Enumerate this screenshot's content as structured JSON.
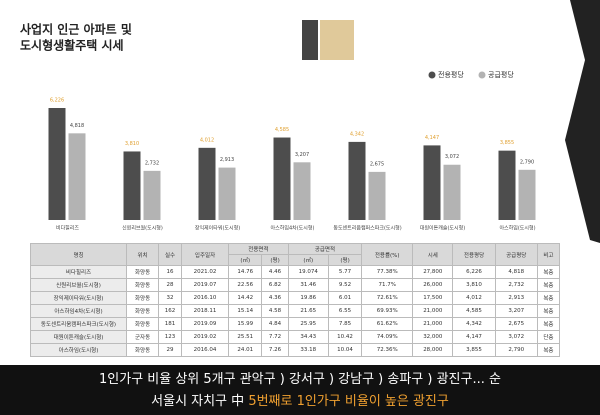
{
  "header": {
    "title_lines": [
      "사업지 인근 아파트 및",
      "도시형생활주택 시세"
    ]
  },
  "chart_data": {
    "type": "bar",
    "legend": "top-right",
    "categories": [
      "비다힐리즈",
      "신원리브월(도시형)",
      "장익제이타워(도시형)",
      "아스하임4차(도시형)",
      "동도센트리움캠퍼스파크(도시형)",
      "대원이튼캐슬(도시형)",
      "아스하임(도시형)"
    ],
    "series": [
      {
        "name": "전용평당",
        "color": "#4d4d4d",
        "label_color": "#e0a030",
        "values": [
          6226,
          3810,
          4012,
          4585,
          4342,
          4147,
          3855
        ],
        "value_labels": [
          "6,226",
          "3,810",
          "4,012",
          "4,585",
          "4,342",
          "4,147",
          "3,855"
        ]
      },
      {
        "name": "공급평당",
        "color": "#b3b3b3",
        "label_color": "#444444",
        "values": [
          4818,
          2732,
          2913,
          3207,
          2675,
          3072,
          2790
        ],
        "value_labels": [
          "4,818",
          "2,732",
          "2,913",
          "3,207",
          "2,675",
          "3,072",
          "2,790"
        ]
      }
    ]
  },
  "table": {
    "header": [
      "명칭",
      "위치",
      "실수",
      "입주일자",
      "전용면적",
      "공급면적",
      "전용률(%)",
      "시세",
      "전용평당",
      "공급평당",
      "비고"
    ],
    "subheader": [
      "(㎡)",
      "(평)",
      "(㎡)",
      "(평)"
    ],
    "rows": [
      [
        "비다힐리즈",
        "화양동",
        "16",
        "2021.02",
        "14.76",
        "4.46",
        "19.074",
        "5.77",
        "77.38%",
        "27,800",
        "6,226",
        "4,818",
        "복층"
      ],
      [
        "신원리브월(도시형)",
        "화양동",
        "28",
        "2019.07",
        "22.56",
        "6.82",
        "31.46",
        "9.52",
        "71.7%",
        "26,000",
        "3,810",
        "2,732",
        "복층"
      ],
      [
        "장익제이타워(도시형)",
        "화양동",
        "32",
        "2016.10",
        "14.42",
        "4.36",
        "19.86",
        "6.01",
        "72.61%",
        "17,500",
        "4,012",
        "2,913",
        "복층"
      ],
      [
        "아스하임4차(도시형)",
        "화양동",
        "162",
        "2018.11",
        "15.14",
        "4.58",
        "21.65",
        "6.55",
        "69.93%",
        "21,000",
        "4,585",
        "3,207",
        "복층"
      ],
      [
        "동도센트리움캠퍼스파크(도시형)",
        "화양동",
        "181",
        "2019.09",
        "15.99",
        "4.84",
        "25.95",
        "7.85",
        "61.62%",
        "21,000",
        "4,342",
        "2,675",
        "복층"
      ],
      [
        "대원이튼캐슬(도시형)",
        "군자동",
        "123",
        "2019.02",
        "25.51",
        "7.72",
        "34.43",
        "10.42",
        "74.09%",
        "32,000",
        "4,147",
        "3,072",
        "단층"
      ],
      [
        "아스하임(도시형)",
        "화양동",
        "29",
        "2016.04",
        "24.01",
        "7.26",
        "33.18",
        "10.04",
        "72.36%",
        "28,000",
        "3,855",
        "2,790",
        "복층"
      ]
    ]
  },
  "footer": {
    "line1": "1인가구 비율 상위 5개구 관악구 ) 강서구 ) 강남구 ) 송파구 ) 광진구... 순",
    "line2_prefix": "서울시 자치구 中",
    "line2_highlight": "5번째로 1인가구 비율이 높은 광진구"
  }
}
